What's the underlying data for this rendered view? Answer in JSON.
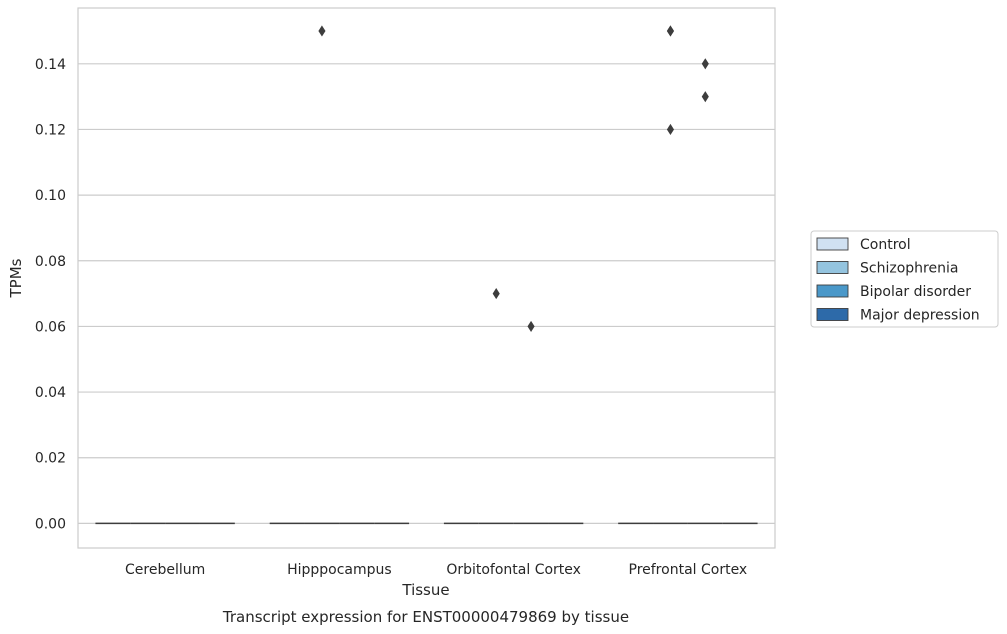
{
  "caption": "Transcript expression for ENST00000479869 by tissue",
  "chart_data": {
    "type": "box",
    "xlabel": "Tissue",
    "ylabel": "TPMs",
    "categories": [
      "Cerebellum",
      "Hipppocampus",
      "Orbitofontal Cortex",
      "Prefrontal Cortex"
    ],
    "ylim": [
      -0.0075,
      0.157
    ],
    "yticks": [
      0.0,
      0.02,
      0.04,
      0.06,
      0.08,
      0.1,
      0.12,
      0.14
    ],
    "ytick_labels": [
      "0.00",
      "0.02",
      "0.04",
      "0.06",
      "0.08",
      "0.10",
      "0.12",
      "0.14"
    ],
    "grid": "horizontal",
    "legend_position": "right",
    "series": [
      {
        "name": "Control",
        "color": "#d0e1f2",
        "boxes": [
          {
            "q1": 0,
            "median": 0,
            "q3": 0
          },
          {
            "q1": 0,
            "median": 0,
            "q3": 0
          },
          {
            "q1": 0,
            "median": 0,
            "q3": 0
          },
          {
            "q1": 0,
            "median": 0,
            "q3": 0
          }
        ],
        "outliers": [
          [],
          [],
          [],
          []
        ]
      },
      {
        "name": "Schizophrenia",
        "color": "#94c4df",
        "boxes": [
          {
            "q1": 0,
            "median": 0,
            "q3": 0
          },
          {
            "q1": 0,
            "median": 0,
            "q3": 0
          },
          {
            "q1": 0,
            "median": 0,
            "q3": 0
          },
          {
            "q1": 0,
            "median": 0,
            "q3": 0
          }
        ],
        "outliers": [
          [],
          [
            0.15
          ],
          [
            0.07
          ],
          [
            0.15,
            0.15,
            0.12
          ]
        ]
      },
      {
        "name": "Bipolar disorder",
        "color": "#4a98c9",
        "boxes": [
          {
            "q1": 0,
            "median": 0,
            "q3": 0
          },
          {
            "q1": 0,
            "median": 0,
            "q3": 0
          },
          {
            "q1": 0,
            "median": 0,
            "q3": 0
          },
          {
            "q1": 0,
            "median": 0,
            "q3": 0
          }
        ],
        "outliers": [
          [],
          [],
          [
            0.06
          ],
          [
            0.14,
            0.13
          ]
        ]
      },
      {
        "name": "Major depression",
        "color": "#2d6aa9",
        "boxes": [
          {
            "q1": 0,
            "median": 0,
            "q3": 0
          },
          {
            "q1": 0,
            "median": 0,
            "q3": 0
          },
          {
            "q1": 0,
            "median": 0,
            "q3": 0
          },
          {
            "q1": 0,
            "median": 0,
            "q3": 0
          }
        ],
        "outliers": [
          [],
          [],
          [],
          []
        ]
      }
    ]
  }
}
